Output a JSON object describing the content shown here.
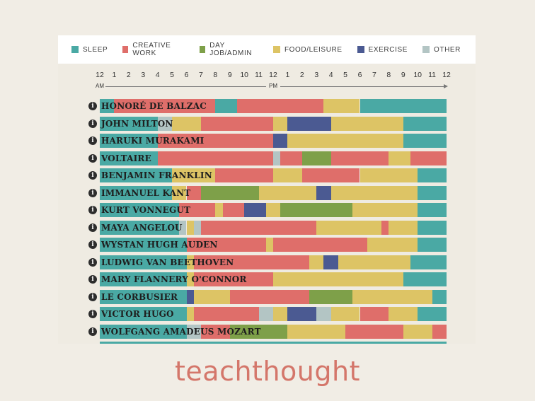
{
  "legend": [
    {
      "key": "sleep",
      "label": "SLEEP",
      "color": "#4aa9a4"
    },
    {
      "key": "creative",
      "label": "CREATIVE WORK",
      "color": "#df6e6a"
    },
    {
      "key": "dayjob",
      "label": "DAY JOB/ADMIN",
      "color": "#7ea049"
    },
    {
      "key": "food",
      "label": "FOOD/LEISURE",
      "color": "#ddc465"
    },
    {
      "key": "exercise",
      "label": "EXERCISE",
      "color": "#4b5a92"
    },
    {
      "key": "other",
      "label": "OTHER",
      "color": "#b3c5c4"
    }
  ],
  "axis": {
    "ticks": [
      "12",
      "1",
      "2",
      "3",
      "4",
      "5",
      "6",
      "7",
      "8",
      "9",
      "10",
      "11",
      "12",
      "1",
      "2",
      "3",
      "4",
      "5",
      "6",
      "7",
      "8",
      "9",
      "10",
      "11",
      "12"
    ],
    "am_label": "AM",
    "pm_label": "PM"
  },
  "info_glyph": "i",
  "brand": "teachthought",
  "chart_data": {
    "type": "bar",
    "orientation": "horizontal-stacked-timeline",
    "x_range_hours": [
      0,
      24
    ],
    "x_unit": "hour of day",
    "categories": [
      "SLEEP",
      "CREATIVE WORK",
      "DAY JOB/ADMIN",
      "FOOD/LEISURE",
      "EXERCISE",
      "OTHER"
    ],
    "rows": [
      {
        "name": "HONORÉ DE BALZAC",
        "segments": [
          {
            "start": 0,
            "end": 1,
            "cat": "sleep"
          },
          {
            "start": 1,
            "end": 8,
            "cat": "creative"
          },
          {
            "start": 8,
            "end": 9.5,
            "cat": "sleep"
          },
          {
            "start": 9.5,
            "end": 15.5,
            "cat": "creative"
          },
          {
            "start": 15.5,
            "end": 18,
            "cat": "food"
          },
          {
            "start": 18,
            "end": 24,
            "cat": "sleep"
          }
        ]
      },
      {
        "name": "JOHN MILTON",
        "segments": [
          {
            "start": 0,
            "end": 4,
            "cat": "sleep"
          },
          {
            "start": 4,
            "end": 5,
            "cat": "other"
          },
          {
            "start": 5,
            "end": 7,
            "cat": "food"
          },
          {
            "start": 7,
            "end": 12,
            "cat": "creative"
          },
          {
            "start": 12,
            "end": 13,
            "cat": "food"
          },
          {
            "start": 13,
            "end": 16,
            "cat": "exercise"
          },
          {
            "start": 16,
            "end": 21,
            "cat": "food"
          },
          {
            "start": 21,
            "end": 24,
            "cat": "sleep"
          }
        ]
      },
      {
        "name": "HARUKI MURAKAMI",
        "segments": [
          {
            "start": 0,
            "end": 4,
            "cat": "sleep"
          },
          {
            "start": 4,
            "end": 12,
            "cat": "creative"
          },
          {
            "start": 12,
            "end": 13,
            "cat": "exercise"
          },
          {
            "start": 13,
            "end": 21,
            "cat": "food"
          },
          {
            "start": 21,
            "end": 24,
            "cat": "sleep"
          }
        ]
      },
      {
        "name": "VOLTAIRE",
        "segments": [
          {
            "start": 0,
            "end": 4,
            "cat": "sleep"
          },
          {
            "start": 4,
            "end": 12,
            "cat": "creative"
          },
          {
            "start": 12,
            "end": 12.5,
            "cat": "other"
          },
          {
            "start": 12.5,
            "end": 14,
            "cat": "creative"
          },
          {
            "start": 14,
            "end": 16,
            "cat": "dayjob"
          },
          {
            "start": 16,
            "end": 20,
            "cat": "creative"
          },
          {
            "start": 20,
            "end": 21.5,
            "cat": "food"
          },
          {
            "start": 21.5,
            "end": 24,
            "cat": "creative"
          }
        ]
      },
      {
        "name": "BENJAMIN FRANKLIN",
        "segments": [
          {
            "start": 0,
            "end": 5,
            "cat": "sleep"
          },
          {
            "start": 5,
            "end": 8,
            "cat": "food"
          },
          {
            "start": 8,
            "end": 12,
            "cat": "creative"
          },
          {
            "start": 12,
            "end": 14,
            "cat": "food"
          },
          {
            "start": 14,
            "end": 18,
            "cat": "creative"
          },
          {
            "start": 18,
            "end": 22,
            "cat": "food"
          },
          {
            "start": 22,
            "end": 24,
            "cat": "sleep"
          }
        ]
      },
      {
        "name": "IMMANUEL KANT",
        "segments": [
          {
            "start": 0,
            "end": 5,
            "cat": "sleep"
          },
          {
            "start": 5,
            "end": 6,
            "cat": "food"
          },
          {
            "start": 6,
            "end": 7,
            "cat": "creative"
          },
          {
            "start": 7,
            "end": 11,
            "cat": "dayjob"
          },
          {
            "start": 11,
            "end": 15,
            "cat": "food"
          },
          {
            "start": 15,
            "end": 16,
            "cat": "exercise"
          },
          {
            "start": 16,
            "end": 22,
            "cat": "food"
          },
          {
            "start": 22,
            "end": 24,
            "cat": "sleep"
          }
        ]
      },
      {
        "name": "KURT VONNEGUT",
        "segments": [
          {
            "start": 0,
            "end": 5.5,
            "cat": "sleep"
          },
          {
            "start": 5.5,
            "end": 8,
            "cat": "creative"
          },
          {
            "start": 8,
            "end": 8.5,
            "cat": "food"
          },
          {
            "start": 8.5,
            "end": 10,
            "cat": "creative"
          },
          {
            "start": 10,
            "end": 11.5,
            "cat": "exercise"
          },
          {
            "start": 11.5,
            "end": 12.5,
            "cat": "food"
          },
          {
            "start": 12.5,
            "end": 17.5,
            "cat": "dayjob"
          },
          {
            "start": 17.5,
            "end": 22,
            "cat": "food"
          },
          {
            "start": 22,
            "end": 24,
            "cat": "sleep"
          }
        ]
      },
      {
        "name": "MAYA ANGELOU",
        "segments": [
          {
            "start": 0,
            "end": 5.5,
            "cat": "sleep"
          },
          {
            "start": 5.5,
            "end": 6,
            "cat": "other"
          },
          {
            "start": 6,
            "end": 6.5,
            "cat": "food"
          },
          {
            "start": 6.5,
            "end": 7,
            "cat": "other"
          },
          {
            "start": 7,
            "end": 15,
            "cat": "creative"
          },
          {
            "start": 15,
            "end": 19.5,
            "cat": "food"
          },
          {
            "start": 19.5,
            "end": 20,
            "cat": "creative"
          },
          {
            "start": 20,
            "end": 22,
            "cat": "food"
          },
          {
            "start": 22,
            "end": 24,
            "cat": "sleep"
          }
        ]
      },
      {
        "name": "WYSTAN HUGH AUDEN",
        "segments": [
          {
            "start": 0,
            "end": 6,
            "cat": "sleep"
          },
          {
            "start": 6,
            "end": 11.5,
            "cat": "creative"
          },
          {
            "start": 11.5,
            "end": 12,
            "cat": "food"
          },
          {
            "start": 12,
            "end": 18.5,
            "cat": "creative"
          },
          {
            "start": 18.5,
            "end": 22,
            "cat": "food"
          },
          {
            "start": 22,
            "end": 24,
            "cat": "sleep"
          }
        ]
      },
      {
        "name": "LUDWIG VAN BEETHOVEN",
        "segments": [
          {
            "start": 0,
            "end": 6,
            "cat": "sleep"
          },
          {
            "start": 6,
            "end": 6.5,
            "cat": "food"
          },
          {
            "start": 6.5,
            "end": 14.5,
            "cat": "creative"
          },
          {
            "start": 14.5,
            "end": 15.5,
            "cat": "food"
          },
          {
            "start": 15.5,
            "end": 16.5,
            "cat": "exercise"
          },
          {
            "start": 16.5,
            "end": 21.5,
            "cat": "food"
          },
          {
            "start": 21.5,
            "end": 24,
            "cat": "sleep"
          }
        ]
      },
      {
        "name": "MARY FLANNERY O'CONNOR",
        "segments": [
          {
            "start": 0,
            "end": 6,
            "cat": "sleep"
          },
          {
            "start": 6,
            "end": 6.5,
            "cat": "food"
          },
          {
            "start": 6.5,
            "end": 9,
            "cat": "creative"
          },
          {
            "start": 9,
            "end": 12,
            "cat": "creative"
          },
          {
            "start": 12,
            "end": 21,
            "cat": "food"
          },
          {
            "start": 21,
            "end": 24,
            "cat": "sleep"
          }
        ]
      },
      {
        "name": "LE CORBUSIER",
        "segments": [
          {
            "start": 0,
            "end": 6,
            "cat": "sleep"
          },
          {
            "start": 6,
            "end": 6.5,
            "cat": "exercise"
          },
          {
            "start": 6.5,
            "end": 9,
            "cat": "food"
          },
          {
            "start": 9,
            "end": 14.5,
            "cat": "creative"
          },
          {
            "start": 14.5,
            "end": 17.5,
            "cat": "dayjob"
          },
          {
            "start": 17.5,
            "end": 23,
            "cat": "food"
          },
          {
            "start": 23,
            "end": 24,
            "cat": "sleep"
          }
        ]
      },
      {
        "name": "VICTOR HUGO",
        "segments": [
          {
            "start": 0,
            "end": 6,
            "cat": "sleep"
          },
          {
            "start": 6,
            "end": 6.5,
            "cat": "food"
          },
          {
            "start": 6.5,
            "end": 11,
            "cat": "creative"
          },
          {
            "start": 11,
            "end": 12,
            "cat": "other"
          },
          {
            "start": 12,
            "end": 13,
            "cat": "food"
          },
          {
            "start": 13,
            "end": 15,
            "cat": "exercise"
          },
          {
            "start": 15,
            "end": 16,
            "cat": "other"
          },
          {
            "start": 16,
            "end": 18,
            "cat": "food"
          },
          {
            "start": 18,
            "end": 20,
            "cat": "creative"
          },
          {
            "start": 20,
            "end": 22,
            "cat": "food"
          },
          {
            "start": 22,
            "end": 24,
            "cat": "sleep"
          }
        ]
      },
      {
        "name": "WOLFGANG AMADEUS MOZART",
        "segments": [
          {
            "start": 0,
            "end": 6,
            "cat": "sleep"
          },
          {
            "start": 6,
            "end": 7,
            "cat": "other"
          },
          {
            "start": 7,
            "end": 9,
            "cat": "creative"
          },
          {
            "start": 9,
            "end": 13,
            "cat": "dayjob"
          },
          {
            "start": 13,
            "end": 17,
            "cat": "food"
          },
          {
            "start": 17,
            "end": 21,
            "cat": "creative"
          },
          {
            "start": 21,
            "end": 23,
            "cat": "food"
          },
          {
            "start": 23,
            "end": 24,
            "cat": "creative"
          }
        ]
      }
    ]
  }
}
